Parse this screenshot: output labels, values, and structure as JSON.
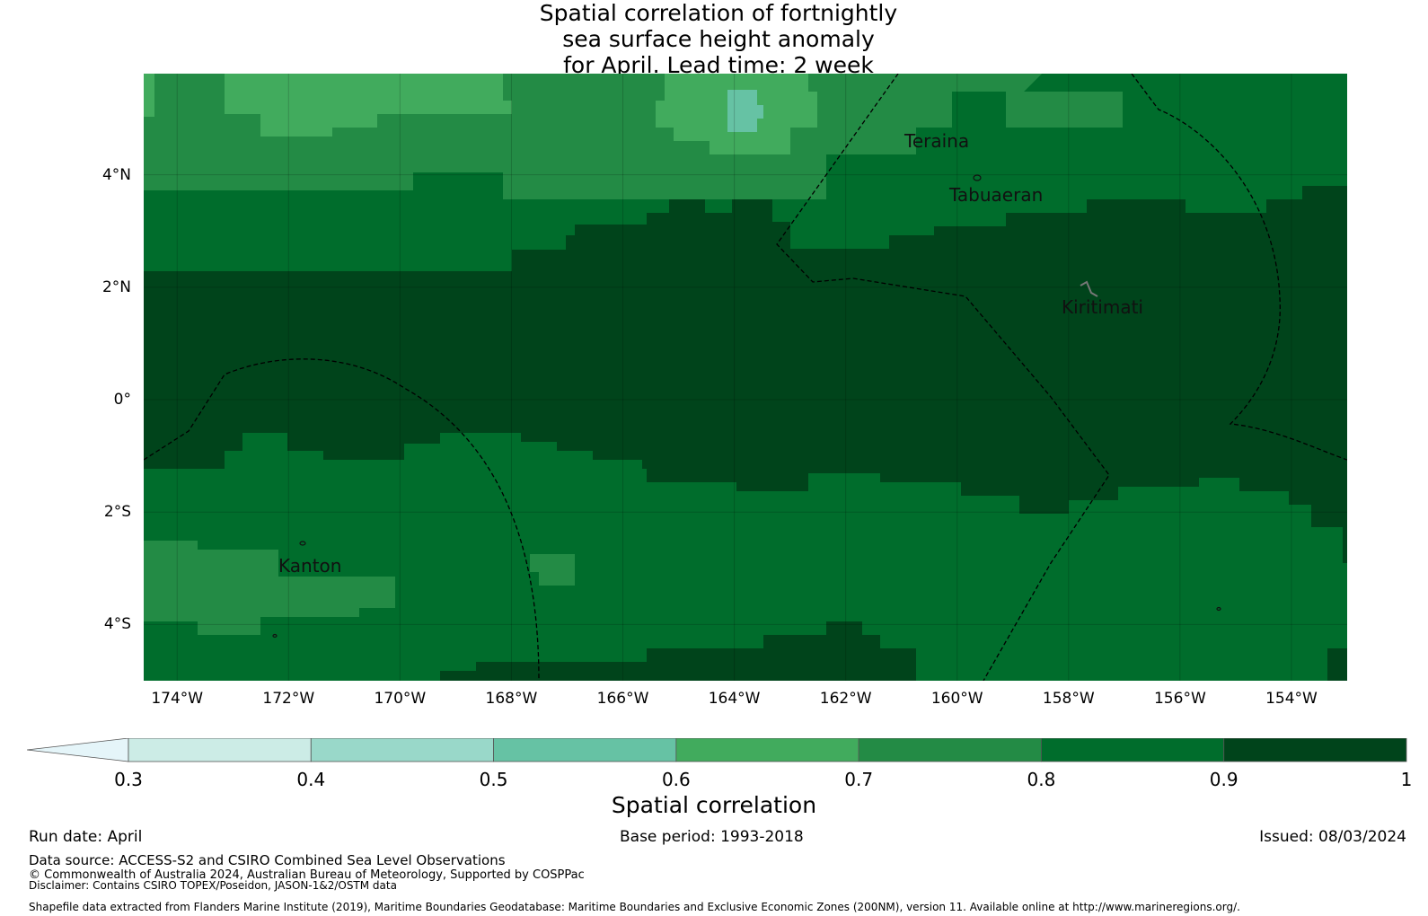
{
  "title": {
    "line1": "Spatial correlation of fortnightly",
    "line2": "sea surface height anomaly",
    "line3": "for April. Lead time: 2 week"
  },
  "map": {
    "lon_range": [
      -174.6,
      -153.0
    ],
    "lat_range": [
      -5.0,
      5.8
    ],
    "x_ticks": [
      "174°W",
      "172°W",
      "170°W",
      "168°W",
      "166°W",
      "164°W",
      "162°W",
      "160°W",
      "158°W",
      "156°W",
      "154°W"
    ],
    "x_tick_lons": [
      -174,
      -172,
      -170,
      -168,
      -166,
      -164,
      -162,
      -160,
      -158,
      -156,
      -154
    ],
    "y_ticks": [
      "4°N",
      "2°N",
      "0°",
      "2°S",
      "4°S"
    ],
    "y_tick_lats": [
      4,
      2,
      0,
      -2,
      -4
    ],
    "places": [
      {
        "name": "Teraina",
        "lon": -160.4,
        "lat": 4.7
      },
      {
        "name": "Tabuaeran",
        "lon": -159.4,
        "lat": 3.9
      },
      {
        "name": "Kiritimati",
        "lon": -157.4,
        "lat": 1.9
      },
      {
        "name": "Kanton",
        "lon": -171.7,
        "lat": -2.8
      }
    ],
    "correlation_bands": [
      {
        "range": "0.9-1.0",
        "color": "#00441b",
        "region": "equatorial band"
      },
      {
        "range": "0.8-0.9",
        "color": "#006d2c",
        "region": "dominant surrounding field"
      },
      {
        "range": "0.7-0.8",
        "color": "#238b45",
        "region": "north-west and south-west patches"
      },
      {
        "range": "0.6-0.7",
        "color": "#41ab5d",
        "region": "northern patches"
      },
      {
        "range": "0.5-0.6",
        "color": "#66c2a4",
        "region": "small patch near 165°W, 5°N"
      }
    ]
  },
  "colorbar": {
    "ticks": [
      "0.3",
      "0.4",
      "0.5",
      "0.6",
      "0.7",
      "0.8",
      "0.9",
      "1"
    ],
    "colors": [
      "#ccece6",
      "#99d8c9",
      "#66c2a4",
      "#41ab5d",
      "#238b45",
      "#006d2c",
      "#00441b"
    ],
    "extend_color": "#e5f5f9",
    "label": "Spatial correlation"
  },
  "footer": {
    "run_date": "Run date: April",
    "base_period": "Base period: 1993-2018",
    "issued": "Issued: 08/03/2024",
    "data_source": "Data source: ACCESS-S2 and CSIRO Combined Sea Level Observations",
    "copyright": "© Commonwealth of Australia 2024, Australian Bureau of Meteorology, Supported by COSPPac",
    "disclaimer": "Disclaimer: Contains CSIRO TOPEX/Poseidon, JASON-1&2/OSTM data",
    "shapefile": "Shapefile data extracted from Flanders Marine Institute (2019), Maritime Boundaries Geodatabase: Maritime Boundaries and Exclusive Economic Zones (200NM), version 11. Available online at http://www.marineregions.org/."
  }
}
